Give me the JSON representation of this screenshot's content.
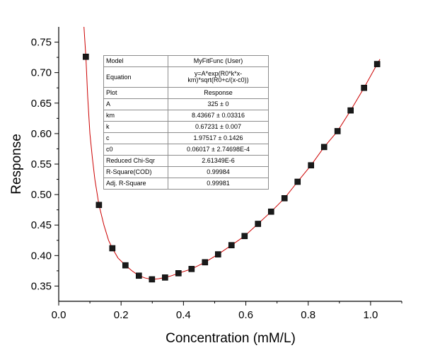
{
  "chart_data": {
    "type": "scatter",
    "xlabel": "Concentration (mM/L)",
    "ylabel": "Response",
    "xlim": [
      0.0,
      1.1
    ],
    "ylim": [
      0.325,
      0.775
    ],
    "x_ticks": [
      "0.0",
      "0.2",
      "0.4",
      "0.6",
      "0.8",
      "1.0"
    ],
    "y_ticks": [
      "0.35",
      "0.40",
      "0.45",
      "0.50",
      "0.55",
      "0.60",
      "0.65",
      "0.70",
      "0.75"
    ],
    "grid": false,
    "colors": {
      "markers": "#1a1a1a",
      "fit_line": "#cc0000"
    },
    "series": [
      {
        "type": "scatter",
        "marker": "square",
        "x": [
          0.087,
          0.129,
          0.172,
          0.214,
          0.257,
          0.299,
          0.341,
          0.384,
          0.426,
          0.469,
          0.511,
          0.554,
          0.596,
          0.639,
          0.681,
          0.724,
          0.766,
          0.809,
          0.851,
          0.894,
          0.936,
          0.979,
          1.021
        ],
        "y": [
          0.726,
          0.483,
          0.412,
          0.384,
          0.367,
          0.361,
          0.364,
          0.371,
          0.378,
          0.389,
          0.402,
          0.417,
          0.432,
          0.452,
          0.472,
          0.494,
          0.521,
          0.548,
          0.578,
          0.604,
          0.638,
          0.675,
          0.714
        ]
      },
      {
        "type": "line",
        "x": [
          0.081,
          0.087,
          0.093,
          0.1,
          0.108,
          0.116,
          0.129,
          0.145,
          0.16,
          0.172,
          0.19,
          0.214,
          0.235,
          0.257,
          0.278,
          0.299,
          0.32,
          0.341,
          0.362,
          0.384,
          0.426,
          0.469,
          0.511,
          0.554,
          0.596,
          0.639,
          0.681,
          0.724,
          0.766,
          0.809,
          0.851,
          0.894,
          0.936,
          0.979,
          1.021,
          1.03
        ],
        "y": [
          0.775,
          0.726,
          0.66,
          0.6,
          0.56,
          0.525,
          0.483,
          0.45,
          0.425,
          0.412,
          0.396,
          0.384,
          0.375,
          0.367,
          0.363,
          0.361,
          0.362,
          0.364,
          0.367,
          0.371,
          0.378,
          0.389,
          0.402,
          0.417,
          0.432,
          0.452,
          0.472,
          0.494,
          0.521,
          0.548,
          0.578,
          0.604,
          0.638,
          0.675,
          0.714,
          0.722
        ]
      }
    ]
  },
  "fit_table": [
    {
      "key": "Model",
      "value": "MyFitFunc (User)"
    },
    {
      "key": "Equation",
      "value": "y=A*exp(R0*k*x-km)*sqrt(R0+c/(x-c0))"
    },
    {
      "key": "Plot",
      "value": "Response"
    },
    {
      "key": "A",
      "value": "325 ± 0"
    },
    {
      "key": "km",
      "value": "8.43667 ± 0.03316"
    },
    {
      "key": "k",
      "value": "0.67231 ± 0.007"
    },
    {
      "key": "c",
      "value": "1.97517 ± 0.1426"
    },
    {
      "key": "c0",
      "value": "0.06017 ± 2.74698E-4"
    },
    {
      "key": "Reduced Chi-Sqr",
      "value": "2.61349E-6"
    },
    {
      "key": "R-Square(COD)",
      "value": "0.99984"
    },
    {
      "key": "Adj. R-Square",
      "value": "0.99981"
    }
  ]
}
